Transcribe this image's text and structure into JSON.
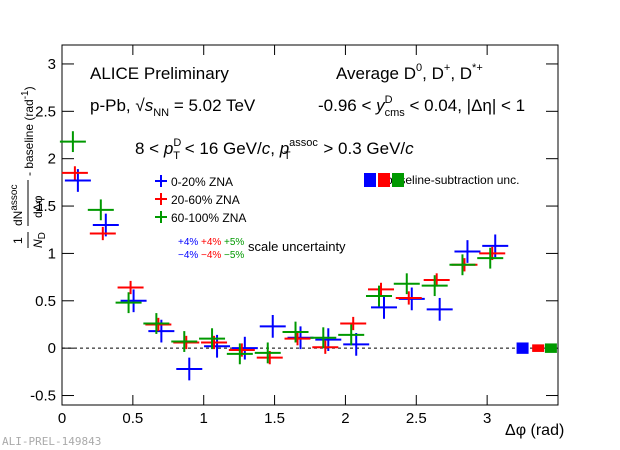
{
  "chart_data": {
    "type": "errorbar",
    "experiment": "ALICE Preliminary",
    "title_right": [
      "Average D",
      "0",
      ", D",
      "+",
      ", D",
      "*+"
    ],
    "system": [
      "p-Pb, ",
      "√",
      "s",
      "NN",
      " = 5.02 TeV"
    ],
    "rapidity": [
      "-0.96 < ",
      "y",
      "D",
      "cms",
      " < 0.04, |Δη| < 1"
    ],
    "pt_range": [
      "8 < ",
      "p",
      "D",
      "T",
      " < 16 GeV/",
      "c",
      ", ",
      "p",
      "assoc",
      "T",
      " > 0.3 GeV/",
      "c"
    ],
    "x_label": "Δφ (rad)",
    "y_label": [
      "1",
      "N",
      "D",
      "dN",
      "assoc",
      "dΔφ",
      " - baseline (rad",
      "-1",
      ")"
    ],
    "baseline_label": "baseline-subtraction unc.",
    "scale_label": "scale uncertainty",
    "watermark": "ALI-PREL-149843",
    "x": [
      0.098,
      0.295,
      0.491,
      0.687,
      0.884,
      1.08,
      1.276,
      1.473,
      1.669,
      1.865,
      2.062,
      2.258,
      2.454,
      2.651,
      2.847,
      3.043
    ],
    "series": [
      {
        "name": "0-20% ZNA",
        "color": "#0000ff",
        "values": [
          1.77,
          1.3,
          0.5,
          0.18,
          -0.22,
          0.02,
          0.0,
          0.23,
          0.11,
          0.09,
          0.04,
          0.43,
          0.52,
          0.41,
          1.02,
          1.08
        ],
        "errors": [
          0.12,
          0.12,
          0.12,
          0.12,
          0.12,
          0.12,
          0.12,
          0.12,
          0.12,
          0.12,
          0.12,
          0.12,
          0.12,
          0.12,
          0.12,
          0.12
        ],
        "baseline_x": 3.25,
        "baseline_unc": 0.06,
        "scale_unc_labels": [
          "+4%",
          "−4%"
        ]
      },
      {
        "name": "20-60% ZNA",
        "color": "#ff0000",
        "values": [
          1.85,
          1.21,
          0.64,
          0.25,
          0.06,
          0.06,
          -0.02,
          -0.1,
          0.1,
          0.01,
          0.26,
          0.62,
          0.53,
          0.72,
          0.88,
          1.0
        ],
        "errors": [
          0.07,
          0.07,
          0.07,
          0.07,
          0.07,
          0.07,
          0.07,
          0.07,
          0.07,
          0.07,
          0.07,
          0.07,
          0.07,
          0.07,
          0.07,
          0.07
        ],
        "baseline_x": 3.36,
        "baseline_unc": 0.04,
        "scale_unc_labels": [
          "+4%",
          "−4%"
        ]
      },
      {
        "name": "60-100% ZNA",
        "color": "#009900",
        "values": [
          2.18,
          1.46,
          0.48,
          0.26,
          0.07,
          0.1,
          -0.06,
          -0.05,
          0.17,
          0.11,
          0.14,
          0.55,
          0.68,
          0.66,
          0.88,
          0.95
        ],
        "errors": [
          0.11,
          0.11,
          0.11,
          0.11,
          0.11,
          0.11,
          0.11,
          0.11,
          0.11,
          0.11,
          0.11,
          0.11,
          0.11,
          0.11,
          0.11,
          0.11
        ],
        "baseline_x": 3.45,
        "baseline_unc": 0.05,
        "scale_unc_labels": [
          "+5%",
          "−5%"
        ]
      }
    ],
    "xlim": [
      0,
      3.5
    ],
    "ylim": [
      -0.6,
      3.2
    ],
    "xticks": [
      0,
      0.5,
      1,
      1.5,
      2,
      2.5,
      3
    ],
    "yticks": [
      -0.5,
      0,
      0.5,
      1,
      1.5,
      2,
      2.5,
      3
    ]
  }
}
